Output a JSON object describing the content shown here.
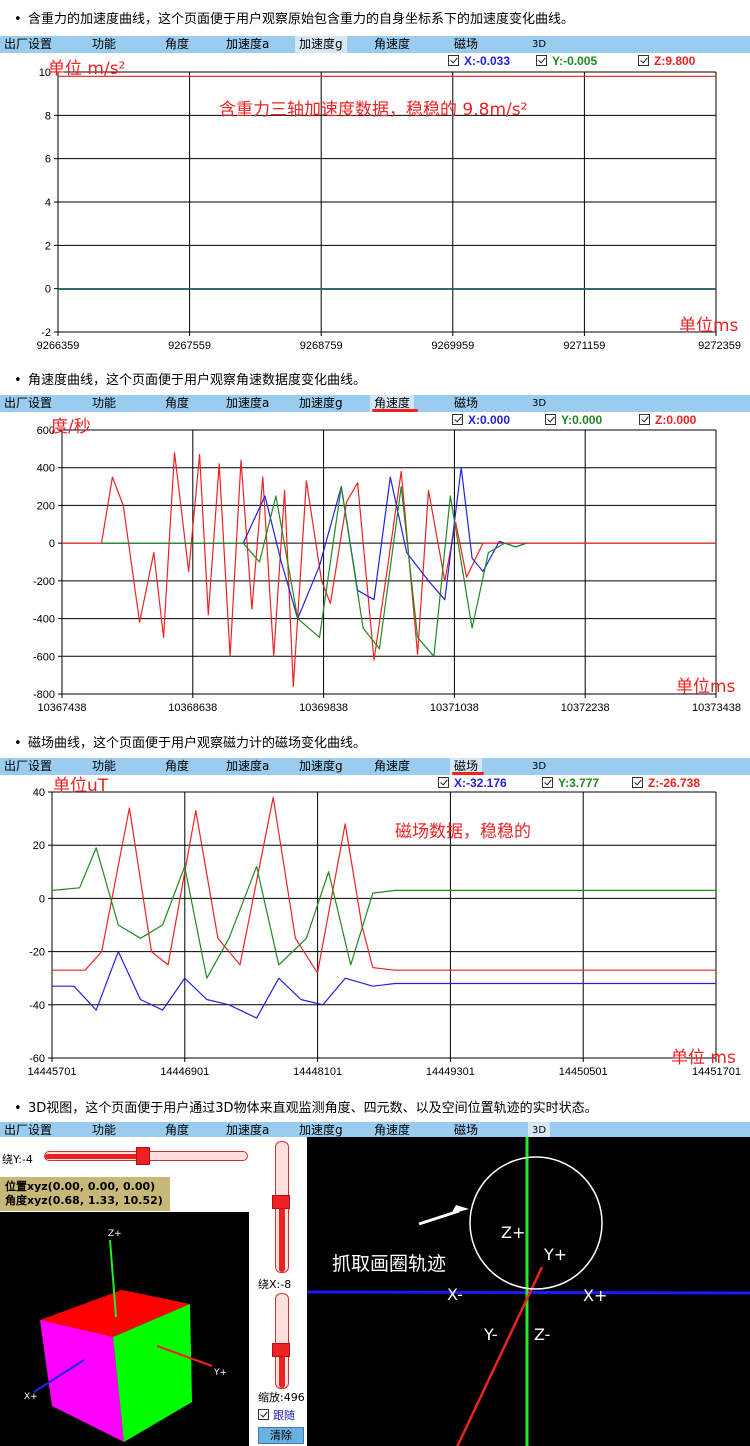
{
  "menu": [
    "出厂设置",
    "功能",
    "角度",
    "加速度a",
    "加速度g",
    "角速度",
    "磁场",
    "3D"
  ],
  "colors": {
    "x": "#2222dd",
    "y": "#228822",
    "z": "#ee2222",
    "menu_bg": "#99ccee",
    "annotation": "#ee2222"
  },
  "sections": [
    {
      "caption": "含重力的加速度曲线，这个页面便于用户观察原始包含重力的自身坐标系下的加速度变化曲线。",
      "active_tab": "加速度g",
      "legend": {
        "x": "X:-0.033",
        "y": "Y:-0.005",
        "z": "Z:9.800"
      },
      "annotations": {
        "unit_y": "单位 m/s²",
        "unit_x": "单位ms",
        "note": "含重力三轴加速度数据，稳稳的 9.8m/s²"
      }
    },
    {
      "caption": "角速度曲线，这个页面便于用户观察角速数据度变化曲线。",
      "active_tab": "角速度",
      "legend": {
        "x": "X:0.000",
        "y": "Y:0.000",
        "z": "Z:0.000"
      },
      "annotations": {
        "unit_y": "度/秒",
        "unit_x": "单位ms"
      }
    },
    {
      "caption": "磁场曲线，这个页面便于用户观察磁力计的磁场变化曲线。",
      "active_tab": "磁场",
      "legend": {
        "x": "X:-32.176",
        "y": "Y:3.777",
        "z": "Z:-26.738"
      },
      "annotations": {
        "unit_y": "单位uT",
        "unit_x": "单位 ms",
        "note": "磁场数据，稳稳的"
      }
    },
    {
      "caption": "3D视图，这个页面便于用户通过3D物体来直观监测角度、四元数、以及空间位置轨迹的实时状态。",
      "active_tab": "3D"
    }
  ],
  "chart_data": [
    {
      "type": "line",
      "ylim": [
        -2,
        10
      ],
      "yticks": [
        "10",
        "8",
        "6",
        "4",
        "2",
        "0",
        "-2"
      ],
      "xticks": [
        "9266359",
        "9267559",
        "9268759",
        "9269959",
        "9271159",
        "9272359"
      ],
      "series": [
        {
          "key": "z",
          "values": [
            [
              9266359,
              9.8
            ],
            [
              9272359,
              9.8
            ]
          ]
        },
        {
          "key": "x",
          "values": [
            [
              9266359,
              -0.03
            ],
            [
              9272359,
              -0.03
            ]
          ]
        },
        {
          "key": "y",
          "values": [
            [
              9266359,
              0.0
            ],
            [
              9272359,
              0.0
            ]
          ]
        }
      ]
    },
    {
      "type": "line",
      "ylim": [
        -800,
        600
      ],
      "yticks": [
        "600",
        "400",
        "200",
        "0",
        "-200",
        "-400",
        "-600",
        "-800"
      ],
      "xticks": [
        "10367438",
        "10368638",
        "10369838",
        "10371038",
        "10372238",
        "10373438"
      ],
      "series": [
        {
          "key": "z",
          "values": [
            [
              10367438,
              0
            ],
            [
              10367800,
              0
            ],
            [
              10367900,
              350
            ],
            [
              10368000,
              200
            ],
            [
              10368150,
              -420
            ],
            [
              10368280,
              -50
            ],
            [
              10368370,
              -500
            ],
            [
              10368470,
              480
            ],
            [
              10368600,
              -150
            ],
            [
              10368700,
              470
            ],
            [
              10368780,
              -380
            ],
            [
              10368880,
              420
            ],
            [
              10368980,
              -600
            ],
            [
              10369080,
              440
            ],
            [
              10369180,
              -350
            ],
            [
              10369280,
              350
            ],
            [
              10369380,
              -600
            ],
            [
              10369480,
              280
            ],
            [
              10369560,
              -760
            ],
            [
              10369680,
              330
            ],
            [
              10369820,
              -200
            ],
            [
              10369900,
              -320
            ],
            [
              10370050,
              220
            ],
            [
              10370150,
              320
            ],
            [
              10370300,
              -620
            ],
            [
              10370420,
              -150
            ],
            [
              10370550,
              380
            ],
            [
              10370700,
              -590
            ],
            [
              10370800,
              280
            ],
            [
              10370950,
              -200
            ],
            [
              10371050,
              110
            ],
            [
              10371150,
              -180
            ],
            [
              10371300,
              0
            ],
            [
              10373438,
              0
            ]
          ]
        },
        {
          "key": "x",
          "values": [
            [
              10367800,
              0
            ],
            [
              10369100,
              0
            ],
            [
              10369300,
              250
            ],
            [
              10369450,
              -100
            ],
            [
              10369600,
              -400
            ],
            [
              10369800,
              -120
            ],
            [
              10370000,
              300
            ],
            [
              10370150,
              -250
            ],
            [
              10370300,
              -300
            ],
            [
              10370450,
              350
            ],
            [
              10370600,
              -50
            ],
            [
              10370800,
              -200
            ],
            [
              10370950,
              -300
            ],
            [
              10371100,
              400
            ],
            [
              10371200,
              -80
            ],
            [
              10371300,
              -150
            ],
            [
              10371450,
              10
            ],
            [
              10371600,
              -20
            ],
            [
              10371700,
              0
            ]
          ]
        },
        {
          "key": "y",
          "values": [
            [
              10367800,
              0
            ],
            [
              10369100,
              0
            ],
            [
              10369250,
              -100
            ],
            [
              10369400,
              250
            ],
            [
              10369600,
              -400
            ],
            [
              10369800,
              -500
            ],
            [
              10370000,
              300
            ],
            [
              10370200,
              -450
            ],
            [
              10370350,
              -560
            ],
            [
              10370550,
              300
            ],
            [
              10370700,
              -500
            ],
            [
              10370850,
              -600
            ],
            [
              10371000,
              250
            ],
            [
              10371200,
              -450
            ],
            [
              10371350,
              -50
            ],
            [
              10371500,
              0
            ],
            [
              10371600,
              -20
            ],
            [
              10371700,
              0
            ]
          ]
        }
      ]
    },
    {
      "type": "line",
      "ylim": [
        -60,
        40
      ],
      "yticks": [
        "40",
        "20",
        "0",
        "-20",
        "-40",
        "-60"
      ],
      "xticks": [
        "14445701",
        "14446901",
        "14448101",
        "14449301",
        "14450501",
        "14451701"
      ],
      "series": [
        {
          "key": "z",
          "values": [
            [
              14445701,
              -27
            ],
            [
              14446000,
              -27
            ],
            [
              14446150,
              -20
            ],
            [
              14446400,
              34
            ],
            [
              14446600,
              -20
            ],
            [
              14446750,
              -25
            ],
            [
              14447000,
              33
            ],
            [
              14447200,
              -15
            ],
            [
              14447400,
              -25
            ],
            [
              14447700,
              38
            ],
            [
              14447900,
              -15
            ],
            [
              14448100,
              -28
            ],
            [
              14448350,
              28
            ],
            [
              14448500,
              -10
            ],
            [
              14448600,
              -26
            ],
            [
              14448800,
              -27
            ],
            [
              14451701,
              -27
            ]
          ]
        },
        {
          "key": "y",
          "values": [
            [
              14445701,
              3
            ],
            [
              14445950,
              4
            ],
            [
              14446100,
              19
            ],
            [
              14446300,
              -10
            ],
            [
              14446500,
              -15
            ],
            [
              14446700,
              -10
            ],
            [
              14446900,
              12
            ],
            [
              14447100,
              -30
            ],
            [
              14447300,
              -15
            ],
            [
              14447550,
              12
            ],
            [
              14447750,
              -25
            ],
            [
              14448000,
              -15
            ],
            [
              14448200,
              10
            ],
            [
              14448400,
              -25
            ],
            [
              14448600,
              2
            ],
            [
              14448800,
              3
            ],
            [
              14451701,
              3
            ]
          ]
        },
        {
          "key": "x",
          "values": [
            [
              14445701,
              -33
            ],
            [
              14445900,
              -33
            ],
            [
              14446100,
              -42
            ],
            [
              14446300,
              -20
            ],
            [
              14446500,
              -38
            ],
            [
              14446700,
              -42
            ],
            [
              14446900,
              -30
            ],
            [
              14447100,
              -38
            ],
            [
              14447300,
              -40
            ],
            [
              14447550,
              -45
            ],
            [
              14447750,
              -30
            ],
            [
              14447950,
              -38
            ],
            [
              14448150,
              -40
            ],
            [
              14448350,
              -30
            ],
            [
              14448600,
              -33
            ],
            [
              14448800,
              -32
            ],
            [
              14451701,
              -32
            ]
          ]
        }
      ]
    }
  ],
  "view3d": {
    "slider_y_label": "绕Y:-4",
    "position": "位置xyz(0.00, 0.00, 0.00)",
    "angle": "角度xyz(0.68, 1.33, 10.52)",
    "slider_x_label": "绕X:-8",
    "zoom_label": "缩放:496",
    "follow_label": "跟随",
    "clear_label": "清除",
    "cube_axes": {
      "z": "Z+",
      "y": "Y+",
      "x": "X+"
    },
    "world_axes": {
      "zp": "Z+",
      "yp": "Y+",
      "xn": "X-",
      "xp": "X+",
      "yn": "Y-",
      "zn": "Z-"
    },
    "annotation": "抓取画圈轨迹",
    "slider_y_fraction": 0.48,
    "slider_x_fraction": 0.45,
    "zoom_fraction": 0.6
  }
}
